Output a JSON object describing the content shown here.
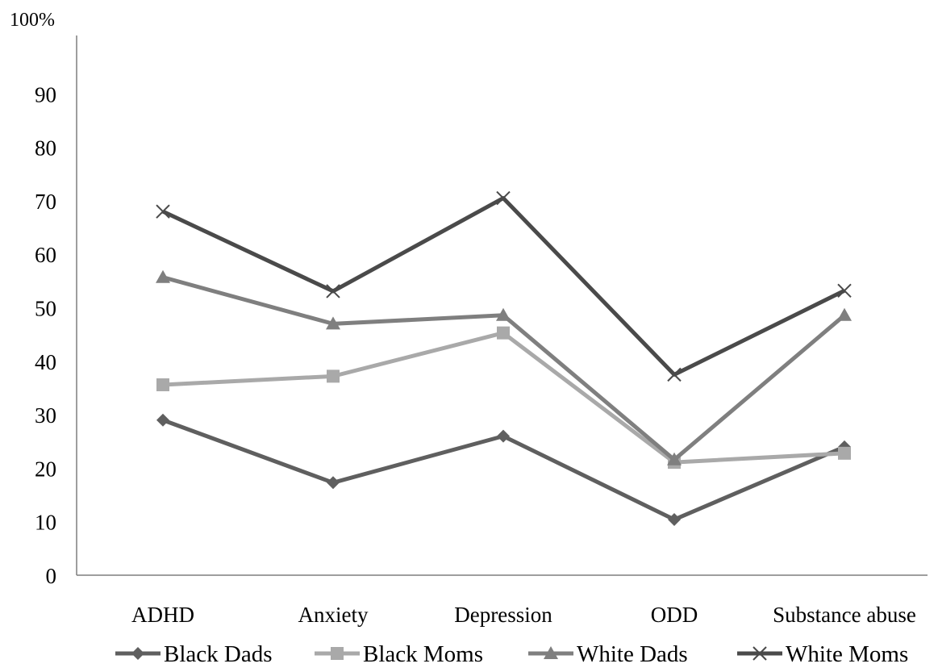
{
  "chart_data": {
    "type": "line",
    "title": "",
    "xlabel": "",
    "ylabel": "",
    "y_unit_label": "100%",
    "ylim": [
      0,
      100
    ],
    "yticks": [
      0,
      10,
      20,
      30,
      40,
      50,
      60,
      70,
      80,
      90
    ],
    "grid": false,
    "legend_position": "bottom",
    "categories": [
      "ADHD",
      "Anxiety",
      "Depression",
      "ODD",
      "Substance abuse"
    ],
    "series": [
      {
        "name": "Black Dads",
        "marker": "diamond",
        "color": "#5f5f5f",
        "values": [
          29,
          17.3,
          26,
          10.4,
          24
        ]
      },
      {
        "name": "Black Moms",
        "marker": "square",
        "color": "#a9a9a9",
        "values": [
          35.6,
          37.2,
          45.3,
          21.1,
          22.8
        ]
      },
      {
        "name": "White Dads",
        "marker": "triangle",
        "color": "#7f7f7f",
        "values": [
          55.7,
          47,
          48.6,
          21.6,
          48.6
        ]
      },
      {
        "name": "White Moms",
        "marker": "x",
        "color": "#4a4a4a",
        "values": [
          68,
          53.1,
          70.5,
          37.5,
          53.2
        ]
      }
    ]
  }
}
